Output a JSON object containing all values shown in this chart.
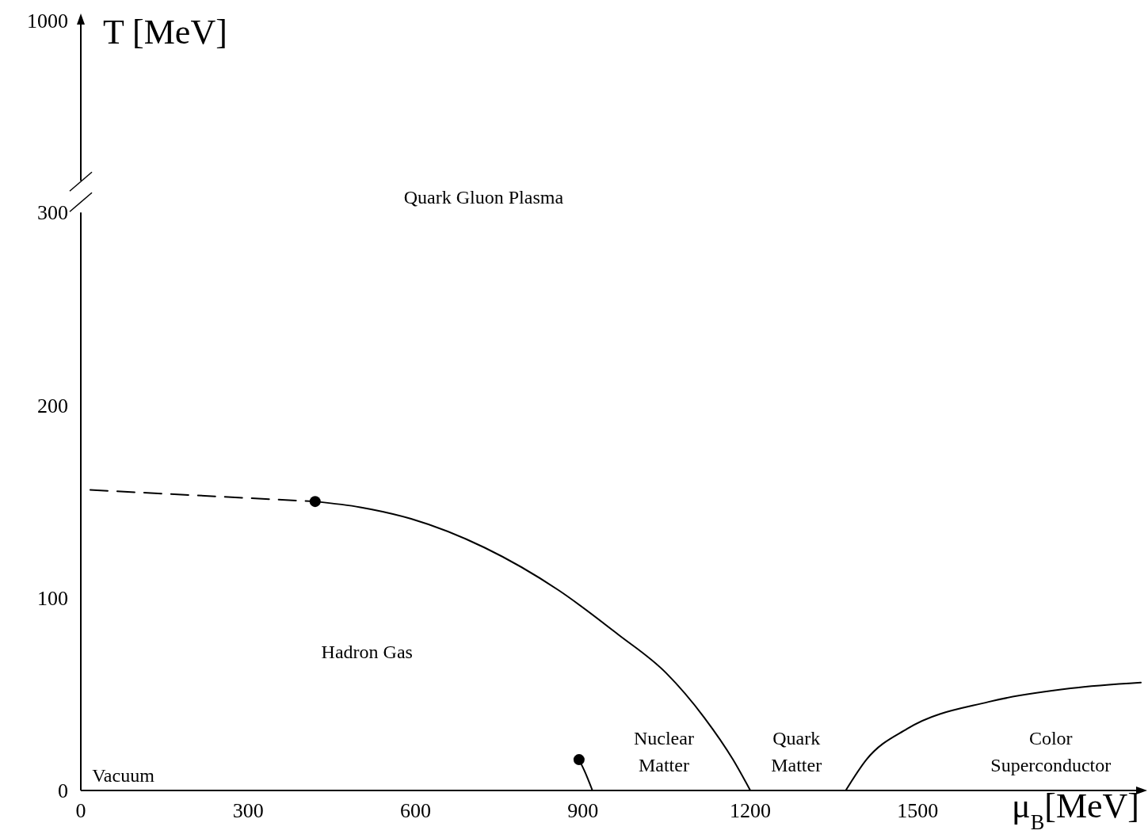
{
  "chart_data": {
    "type": "line",
    "xlabel": "μ$_{B}$[MeV]",
    "ylabel": "T [MeV]",
    "xlim": [
      0,
      1900
    ],
    "xticks": [
      0,
      300,
      600,
      900,
      1200,
      1500
    ],
    "ylim": [
      0,
      300
    ],
    "yticks": [
      0,
      100,
      200,
      300
    ],
    "grid": false,
    "series": [
      {
        "color": "#000000",
        "line_style": "dashed",
        "marker": "none",
        "x": [
          17,
          420
        ],
        "values": [
          156,
          150
        ]
      },
      {
        "color": "#000000",
        "line_style": "solid",
        "marker": "none",
        "x": [
          420,
          501,
          592,
          724,
          856,
          963,
          1049,
          1117,
          1169,
          1200
        ],
        "values": [
          150,
          147,
          141,
          126,
          104,
          81,
          61,
          38,
          16,
          0
        ]
      },
      {
        "color": "#000000",
        "line_style": "solid",
        "marker": "none",
        "x": [
          893,
          903,
          917
        ],
        "values": [
          16,
          10,
          0
        ]
      },
      {
        "color": "#000000",
        "line_style": "solid",
        "marker": "none",
        "x": [
          1371,
          1408,
          1481,
          1627,
          1774,
          1900
        ],
        "values": [
          0,
          16,
          32,
          46,
          53,
          56
        ]
      },
      {
        "type": "scatter",
        "color": "#000000",
        "marker": "circle",
        "x": [
          420,
          893
        ],
        "values": [
          150,
          16
        ]
      }
    ],
    "annotations": [
      "Quark Gluon Plasma",
      "Hadron Gas",
      "Vacuum",
      "Nuclear\nMatter",
      "Quark\nMatter",
      "Color\nSuperconductor",
      "1000"
    ]
  }
}
